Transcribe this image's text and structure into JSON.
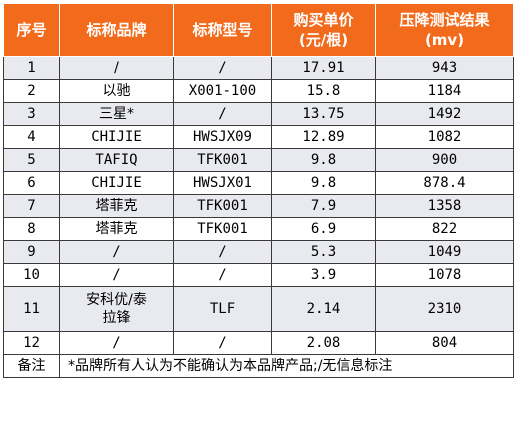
{
  "headers": {
    "seq": "序号",
    "brand": "标称品牌",
    "model": "标称型号",
    "price_line1": "购买单价",
    "price_line2": "(元/根)",
    "result_line1": "压降测试结果",
    "result_line2": "(mv)"
  },
  "rows": [
    {
      "seq": "1",
      "brand": "/",
      "model": "/",
      "price": "17.91",
      "result": "943"
    },
    {
      "seq": "2",
      "brand": "以驰",
      "model": "X001-100",
      "price": "15.8",
      "result": "1184"
    },
    {
      "seq": "3",
      "brand": "三星*",
      "model": "/",
      "price": "13.75",
      "result": "1492"
    },
    {
      "seq": "4",
      "brand": "CHIJIE",
      "model": "HWSJX09",
      "price": "12.89",
      "result": "1082"
    },
    {
      "seq": "5",
      "brand": "TAFIQ",
      "model": "TFK001",
      "price": "9.8",
      "result": "900"
    },
    {
      "seq": "6",
      "brand": "CHIJIE",
      "model": "HWSJX01",
      "price": "9.8",
      "result": "878.4"
    },
    {
      "seq": "7",
      "brand": "塔菲克",
      "model": "TFK001",
      "price": "7.9",
      "result": "1358"
    },
    {
      "seq": "8",
      "brand": "塔菲克",
      "model": "TFK001",
      "price": "6.9",
      "result": "822"
    },
    {
      "seq": "9",
      "brand": "/",
      "model": "/",
      "price": "5.3",
      "result": "1049"
    },
    {
      "seq": "10",
      "brand": "/",
      "model": "/",
      "price": "3.9",
      "result": "1078"
    },
    {
      "seq": "11",
      "brand_line1": "安科优/泰",
      "brand_line2": "拉锋",
      "model": "TLF",
      "price": "2.14",
      "result": "2310"
    },
    {
      "seq": "12",
      "brand": "/",
      "model": "/",
      "price": "2.08",
      "result": "804"
    }
  ],
  "note": {
    "label": "备注",
    "text": "*品牌所有人认为不能确认为本品牌产品;/无信息标注"
  },
  "colors": {
    "header_bg": "#f26b1d",
    "shaded_row": "#e9eaef"
  }
}
